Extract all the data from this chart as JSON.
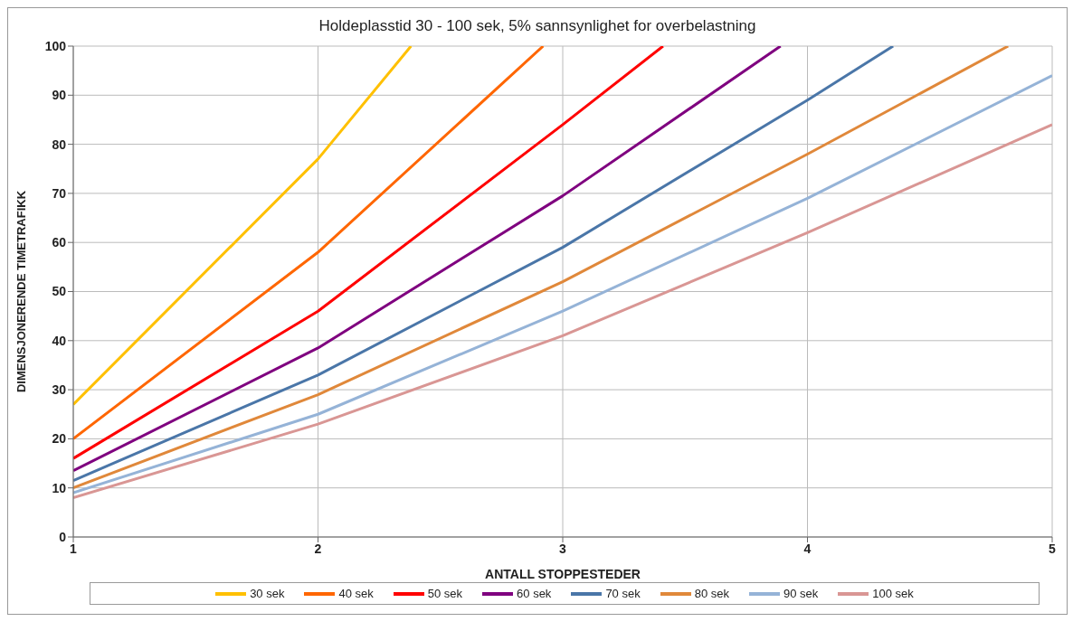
{
  "chart_data": {
    "type": "line",
    "title": "Holdeplasstid 30 - 100 sek, 5% sannsynlighet for overbelastning",
    "xlabel": "ANTALL STOPPESTEDER",
    "ylabel": "DIMENSJONERENDE TIMETRAFIKK",
    "xlim": [
      1,
      5
    ],
    "xticks": [
      1,
      2,
      3,
      4,
      5
    ],
    "ylim": [
      0,
      100
    ],
    "yticks": [
      0,
      10,
      20,
      30,
      40,
      50,
      60,
      70,
      80,
      90,
      100
    ],
    "grid": true,
    "legend": "bottom",
    "marker": "none",
    "line_style": "solid",
    "series": [
      {
        "name": "30 sek",
        "color": "#ffc000",
        "x": [
          1,
          2,
          2.38
        ],
        "values": [
          27,
          77,
          100
        ]
      },
      {
        "name": "40 sek",
        "color": "#ff6600",
        "x": [
          1,
          2,
          2.92
        ],
        "values": [
          20,
          58,
          100
        ]
      },
      {
        "name": "50 sek",
        "color": "#ff0000",
        "x": [
          1,
          2,
          3,
          3.41
        ],
        "values": [
          16,
          46,
          84,
          100
        ]
      },
      {
        "name": "60 sek",
        "color": "#7f007f",
        "x": [
          1,
          2,
          3,
          3.89
        ],
        "values": [
          13.5,
          38.5,
          69.5,
          100
        ]
      },
      {
        "name": "70 sek",
        "color": "#4a76a8",
        "x": [
          1,
          2,
          3,
          4,
          4.35
        ],
        "values": [
          11.5,
          33,
          59,
          89,
          100
        ]
      },
      {
        "name": "80 sek",
        "color": "#e0883a",
        "x": [
          1,
          2,
          3,
          4,
          4.82
        ],
        "values": [
          10,
          29,
          52,
          78,
          100
        ]
      },
      {
        "name": "90 sek",
        "color": "#95b3d7",
        "x": [
          1,
          2,
          3,
          4,
          5
        ],
        "values": [
          9,
          25,
          46,
          69,
          94
        ]
      },
      {
        "name": "100 sek",
        "color": "#d99694",
        "x": [
          1,
          2,
          3,
          4,
          5
        ],
        "values": [
          8,
          23,
          41,
          62,
          84
        ]
      }
    ]
  }
}
